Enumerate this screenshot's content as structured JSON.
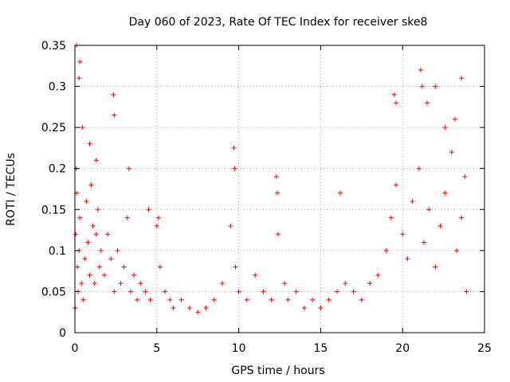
{
  "chart_data": {
    "type": "scatter",
    "title": "Day 060 of 2023, Rate Of TEC Index for receiver ske8",
    "xlabel": "GPS time / hours",
    "ylabel": "ROTI / TECUs",
    "xlim": [
      0,
      25
    ],
    "ylim": [
      0,
      0.35
    ],
    "grid": true,
    "marker": "+",
    "color": "#ff0000",
    "x_ticks": [
      "0",
      "5",
      "10",
      "15",
      "20",
      "25"
    ],
    "y_ticks": [
      "0",
      "0.05",
      "0.1",
      "0.15",
      "0.2",
      "0.25",
      "0.3",
      "0.35"
    ],
    "series": [
      {
        "name": "ROTI",
        "x": [
          0.02,
          0.05,
          0.1,
          0.15,
          0.2,
          0.25,
          0.3,
          0.4,
          0.5,
          0.6,
          0.7,
          0.8,
          0.9,
          1.0,
          1.1,
          1.2,
          1.3,
          1.4,
          1.5,
          1.6,
          1.8,
          2.0,
          2.2,
          2.4,
          2.6,
          2.8,
          3.0,
          3.2,
          3.4,
          3.6,
          3.8,
          4.0,
          4.3,
          4.6,
          5.0,
          5.2,
          5.5,
          5.8,
          6.0,
          6.5,
          7.0,
          7.5,
          8.0,
          8.5,
          9.0,
          9.5,
          9.8,
          10.0,
          10.5,
          11.0,
          11.5,
          12.0,
          12.4,
          12.8,
          13.0,
          13.5,
          14.0,
          14.5,
          15.0,
          15.5,
          16.0,
          16.5,
          17.0,
          17.5,
          18.0,
          18.5,
          19.0,
          19.3,
          19.6,
          20.0,
          20.3,
          20.6,
          21.0,
          21.3,
          21.6,
          22.0,
          22.3,
          22.6,
          23.0,
          23.3,
          23.6,
          23.9,
          0.1,
          0.3,
          0.25,
          0.08,
          0.45,
          0.9,
          1.3,
          2.35,
          2.4,
          3.3,
          4.5,
          5.1,
          9.7,
          9.75,
          12.3,
          12.35,
          16.2,
          19.5,
          19.6,
          21.1,
          21.2,
          21.5,
          22.0,
          22.6,
          23.2,
          23.6,
          23.8
        ],
        "y": [
          0.03,
          0.12,
          0.17,
          0.08,
          0.05,
          0.1,
          0.14,
          0.06,
          0.04,
          0.09,
          0.16,
          0.11,
          0.07,
          0.18,
          0.13,
          0.06,
          0.12,
          0.15,
          0.08,
          0.1,
          0.07,
          0.12,
          0.09,
          0.05,
          0.1,
          0.06,
          0.08,
          0.14,
          0.05,
          0.07,
          0.04,
          0.06,
          0.05,
          0.04,
          0.13,
          0.08,
          0.05,
          0.04,
          0.03,
          0.04,
          0.03,
          0.025,
          0.03,
          0.04,
          0.06,
          0.13,
          0.08,
          0.05,
          0.04,
          0.07,
          0.05,
          0.04,
          0.12,
          0.06,
          0.04,
          0.05,
          0.03,
          0.04,
          0.03,
          0.04,
          0.05,
          0.06,
          0.05,
          0.04,
          0.06,
          0.07,
          0.1,
          0.14,
          0.18,
          0.12,
          0.09,
          0.16,
          0.2,
          0.11,
          0.15,
          0.08,
          0.13,
          0.17,
          0.22,
          0.1,
          0.14,
          0.05,
          0.35,
          0.33,
          0.31,
          0.2,
          0.25,
          0.23,
          0.21,
          0.29,
          0.265,
          0.2,
          0.15,
          0.14,
          0.225,
          0.2,
          0.19,
          0.17,
          0.17,
          0.29,
          0.28,
          0.32,
          0.3,
          0.28,
          0.3,
          0.25,
          0.26,
          0.31,
          0.19
        ]
      }
    ]
  }
}
